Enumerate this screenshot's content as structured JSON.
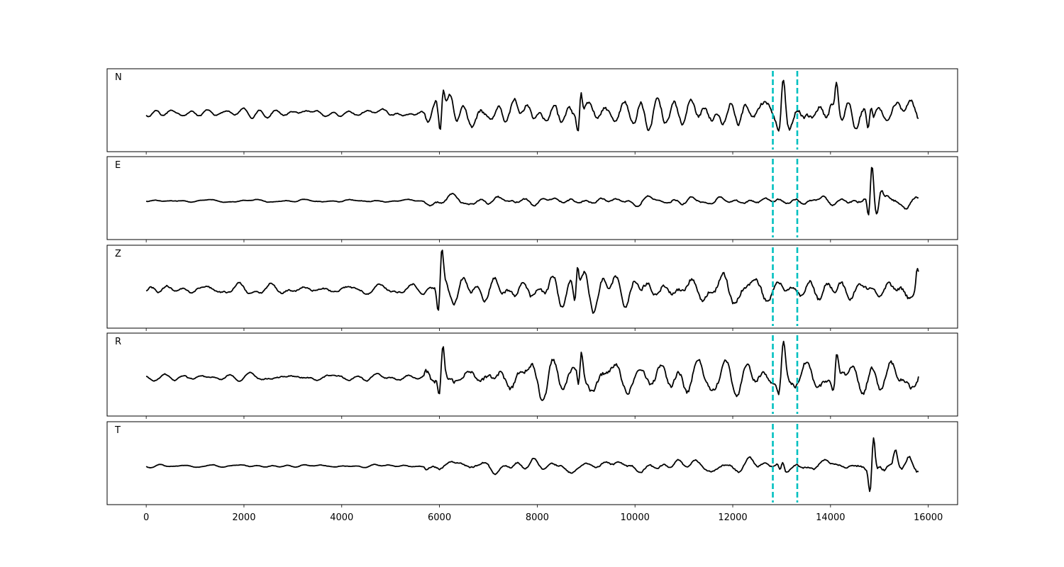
{
  "chart_data": {
    "type": "line",
    "title": "",
    "xlabel": "",
    "ylabel": "",
    "xlim": [
      -800,
      16600
    ],
    "xticks": [
      0,
      2000,
      4000,
      6000,
      8000,
      10000,
      12000,
      14000,
      16000
    ],
    "xtick_labels": [
      "0",
      "2000",
      "4000",
      "6000",
      "8000",
      "10000",
      "12000",
      "14000",
      "16000"
    ],
    "grid": false,
    "marker_color": "#00c0c0",
    "trace_color": "#000000",
    "vertical_markers": [
      12820,
      13320
    ],
    "panels": [
      {
        "label": "N",
        "ylim": [
          -1.3,
          1.3
        ],
        "noise_seed": 11,
        "segments": [
          {
            "x0": 0,
            "x1": 5700,
            "amp": 0.13
          },
          {
            "x0": 5700,
            "x1": 12700,
            "amp": 0.45
          },
          {
            "x0": 12700,
            "x1": 15800,
            "amp": 0.45
          }
        ],
        "events": [
          {
            "x": 6050,
            "amp": 1.05,
            "width": 70
          },
          {
            "x": 8870,
            "amp": 0.85,
            "width": 60
          },
          {
            "x": 13000,
            "amp": 1.15,
            "width": 90
          },
          {
            "x": 14100,
            "amp": 0.7,
            "width": 70
          },
          {
            "x": 14800,
            "amp": 0.6,
            "width": 60
          }
        ]
      },
      {
        "label": "E",
        "ylim": [
          -1.3,
          1.3
        ],
        "noise_seed": 23,
        "segments": [
          {
            "x0": 0,
            "x1": 5700,
            "amp": 0.05
          },
          {
            "x0": 5700,
            "x1": 14500,
            "amp": 0.16
          },
          {
            "x0": 14500,
            "x1": 15800,
            "amp": 0.25
          }
        ],
        "events": [
          {
            "x": 14820,
            "amp": 1.25,
            "width": 70
          },
          {
            "x": 15000,
            "amp": 0.4,
            "width": 80
          }
        ]
      },
      {
        "label": "Z",
        "ylim": [
          -1.3,
          1.3
        ],
        "noise_seed": 37,
        "segments": [
          {
            "x0": 0,
            "x1": 5900,
            "amp": 0.2
          },
          {
            "x0": 5900,
            "x1": 15800,
            "amp": 0.45
          }
        ],
        "events": [
          {
            "x": 6020,
            "amp": 1.3,
            "width": 70
          },
          {
            "x": 8800,
            "amp": 0.9,
            "width": 60
          },
          {
            "x": 15750,
            "amp": 0.45,
            "width": 60
          }
        ]
      },
      {
        "label": "R",
        "ylim": [
          -1.3,
          1.3
        ],
        "noise_seed": 51,
        "segments": [
          {
            "x0": 0,
            "x1": 5700,
            "amp": 0.13
          },
          {
            "x0": 5700,
            "x1": 15800,
            "amp": 0.5
          }
        ],
        "events": [
          {
            "x": 6040,
            "amp": 1.1,
            "width": 70
          },
          {
            "x": 8880,
            "amp": 0.85,
            "width": 60
          },
          {
            "x": 13000,
            "amp": 1.15,
            "width": 90
          },
          {
            "x": 14100,
            "amp": 0.8,
            "width": 70
          }
        ]
      },
      {
        "label": "T",
        "ylim": [
          -1.3,
          1.3
        ],
        "noise_seed": 67,
        "segments": [
          {
            "x0": 0,
            "x1": 5700,
            "amp": 0.05
          },
          {
            "x0": 5700,
            "x1": 14500,
            "amp": 0.18
          },
          {
            "x0": 14500,
            "x1": 15800,
            "amp": 0.3
          }
        ],
        "events": [
          {
            "x": 14850,
            "amp": 1.25,
            "width": 70
          },
          {
            "x": 13000,
            "amp": 0.25,
            "width": 60
          },
          {
            "x": 15300,
            "amp": 0.35,
            "width": 80
          }
        ]
      }
    ]
  }
}
